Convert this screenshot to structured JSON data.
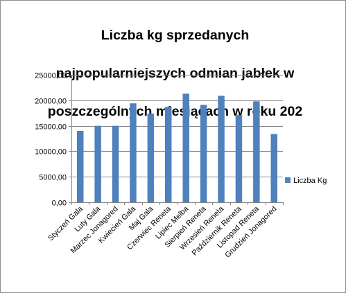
{
  "chart_data": {
    "type": "bar",
    "title": "Liczba kg sprzedanych najpopularniejszych odmian jabłek w poszczególnych miesiącach w roku 202",
    "title_lines": [
      "Liczba kg sprzedanych",
      "najpopularniejszych odmian jabłek w",
      "poszczególnych miesiącach w roku 202"
    ],
    "categories": [
      "Styczeń Gala",
      "Luty Gala",
      "Marzec Jonagored",
      "Kwiecień Gala",
      "Maj Gala",
      "Czerwiec Reneta",
      "Lipiec Melba",
      "Sierpień Reneta",
      "Wrzesień Reneta",
      "Październik Reneta",
      "Listopad Reneta",
      "Grudzień Jonagored"
    ],
    "series": [
      {
        "name": "Liczba Kg",
        "values": [
          14000,
          15000,
          15000,
          19400,
          17400,
          18700,
          21300,
          19100,
          20900,
          17100,
          19800,
          13400
        ]
      }
    ],
    "ylim": [
      0,
      25000
    ],
    "yticks": [
      "0,00",
      "5000,00",
      "10000,00",
      "15000,00",
      "20000,00",
      "25000,00"
    ],
    "grid": true,
    "legend_position": "right",
    "colors": {
      "bar": "#4f81bd",
      "grid": "#868686",
      "axis": "#868686"
    }
  }
}
